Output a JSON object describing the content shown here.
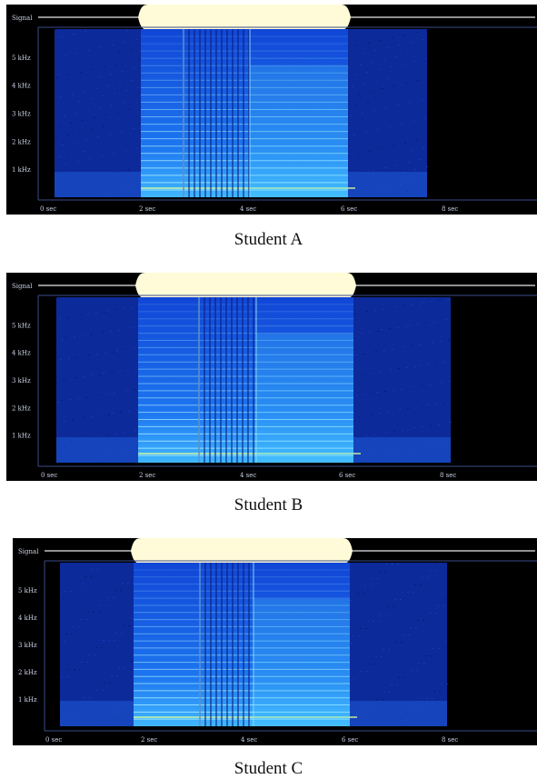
{
  "colors": {
    "background": "#000000",
    "noise": "#0c2a9a",
    "signal_active": "#2a8cff",
    "harmonic": "#aef0ff",
    "envelope": "#fffbd8",
    "axis": "#3a4b86",
    "label": "#c9d2e6"
  },
  "panels": [
    {
      "caption": "Student A",
      "signal_label": "Signal",
      "y_ticks": [
        "5 kHz",
        "4 kHz",
        "3 kHz",
        "2 kHz",
        "1 kHz"
      ],
      "x_ticks": [
        "0 sec",
        "2 sec",
        "4 sec",
        "6 sec",
        "8 sec"
      ]
    },
    {
      "caption": "Student B",
      "signal_label": "Signal",
      "y_ticks": [
        "5 kHz",
        "4 kHz",
        "3 kHz",
        "2 kHz",
        "1 kHz"
      ],
      "x_ticks": [
        "0 sec",
        "2 sec",
        "4 sec",
        "6 sec",
        "8 sec"
      ]
    },
    {
      "caption": "Student C",
      "signal_label": "Signal",
      "y_ticks": [
        "5 kHz",
        "4 kHz",
        "3 kHz",
        "2 kHz",
        "1 kHz"
      ],
      "x_ticks": [
        "0 sec",
        "2 sec",
        "4 sec",
        "6 sec",
        "8 sec"
      ]
    }
  ]
}
